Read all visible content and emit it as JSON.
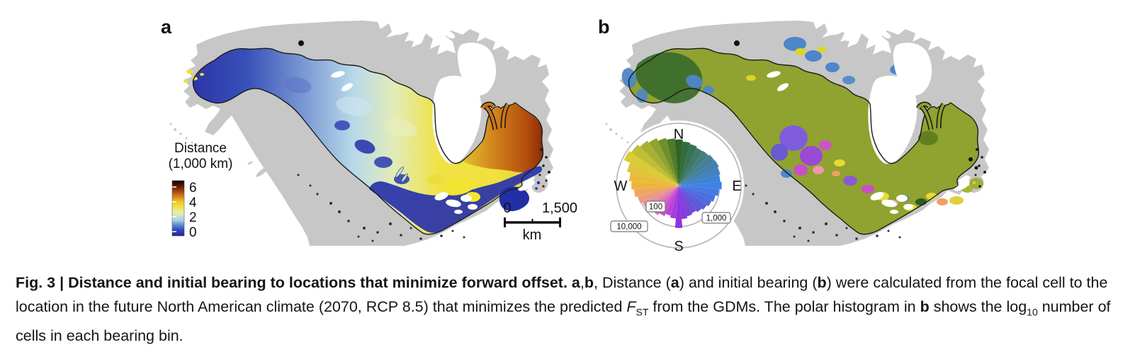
{
  "panels": {
    "a": {
      "label": "a",
      "legend": {
        "title_line1": "Distance",
        "title_line2": "(1,000 km)",
        "ticks": [
          "6",
          "4",
          "2",
          "0"
        ]
      },
      "scale_bar": {
        "start_label": "0",
        "end_label": "1,500",
        "unit_label": "km"
      }
    },
    "b": {
      "label": "b",
      "polar_histogram": {
        "axis_labels": {
          "north": "N",
          "east": "E",
          "south": "S",
          "west": "W"
        },
        "ring_labels": {
          "inner": "100",
          "middle": "1,000",
          "outer": "10,000"
        },
        "radial_scale": "log10 number of cells",
        "bins": [
          {
            "deg": 0,
            "r": 0.74,
            "color": "#2f6626"
          },
          {
            "deg": 10,
            "r": 0.71,
            "color": "#346c3d"
          },
          {
            "deg": 20,
            "r": 0.69,
            "color": "#397253"
          },
          {
            "deg": 30,
            "r": 0.67,
            "color": "#3e786a"
          },
          {
            "deg": 40,
            "r": 0.68,
            "color": "#437e81"
          },
          {
            "deg": 50,
            "r": 0.7,
            "color": "#448196"
          },
          {
            "deg": 60,
            "r": 0.71,
            "color": "#4381ab"
          },
          {
            "deg": 70,
            "r": 0.69,
            "color": "#4182bf"
          },
          {
            "deg": 80,
            "r": 0.67,
            "color": "#4082d4"
          },
          {
            "deg": 90,
            "r": 0.69,
            "color": "#3e82e8"
          },
          {
            "deg": 100,
            "r": 0.65,
            "color": "#4479e4"
          },
          {
            "deg": 110,
            "r": 0.61,
            "color": "#4b70e0"
          },
          {
            "deg": 120,
            "r": 0.58,
            "color": "#5167dc"
          },
          {
            "deg": 130,
            "r": 0.55,
            "color": "#585ed8"
          },
          {
            "deg": 140,
            "r": 0.52,
            "color": "#6156d7"
          },
          {
            "deg": 150,
            "r": 0.49,
            "color": "#6d4dd9"
          },
          {
            "deg": 160,
            "r": 0.51,
            "color": "#7a44dc"
          },
          {
            "deg": 170,
            "r": 0.54,
            "color": "#863bde"
          },
          {
            "deg": 180,
            "r": 0.68,
            "color": "#9232e0"
          },
          {
            "deg": 190,
            "r": 0.53,
            "color": "#a43cdb"
          },
          {
            "deg": 200,
            "r": 0.5,
            "color": "#b745d5"
          },
          {
            "deg": 210,
            "r": 0.54,
            "color": "#c94fd0"
          },
          {
            "deg": 220,
            "r": 0.58,
            "color": "#d364c0"
          },
          {
            "deg": 230,
            "r": 0.61,
            "color": "#de7ab0"
          },
          {
            "deg": 240,
            "r": 0.64,
            "color": "#e88fa0"
          },
          {
            "deg": 250,
            "r": 0.68,
            "color": "#eb9b7f"
          },
          {
            "deg": 260,
            "r": 0.72,
            "color": "#eda85d"
          },
          {
            "deg": 270,
            "r": 0.76,
            "color": "#f0b43c"
          },
          {
            "deg": 280,
            "r": 0.8,
            "color": "#e8bc3b"
          },
          {
            "deg": 290,
            "r": 0.86,
            "color": "#e0c439"
          },
          {
            "deg": 300,
            "r": 0.97,
            "color": "#d8cc38"
          },
          {
            "deg": 310,
            "r": 0.93,
            "color": "#c0be35"
          },
          {
            "deg": 320,
            "r": 0.88,
            "color": "#a7b131"
          },
          {
            "deg": 330,
            "r": 0.84,
            "color": "#8fa32e"
          },
          {
            "deg": 340,
            "r": 0.79,
            "color": "#6f8f2b"
          },
          {
            "deg": 350,
            "r": 0.76,
            "color": "#4f7a29"
          }
        ]
      }
    }
  },
  "caption": {
    "segments": [
      {
        "text": "Fig. 3 | Distance and initial bearing to locations that minimize forward offset. ",
        "bold": true
      },
      {
        "text": "a",
        "bold": true
      },
      {
        "text": ","
      },
      {
        "text": "b",
        "bold": true
      },
      {
        "text": ", Distance ("
      },
      {
        "text": "a",
        "bold": true
      },
      {
        "text": ") and initial bearing ("
      },
      {
        "text": "b",
        "bold": true
      },
      {
        "text": ") were calculated from the focal cell to the location in the future North American climate (2070, RCP 8.5) that minimizes the predicted "
      },
      {
        "text": "F",
        "italic": true
      },
      {
        "text": "ST",
        "sub": true
      },
      {
        "text": " from the GDMs. The polar histogram in "
      },
      {
        "text": "b",
        "bold": true
      },
      {
        "text": " shows the log"
      },
      {
        "text": "10",
        "sub": true
      },
      {
        "text": " number of cells in each bearing bin."
      }
    ]
  },
  "colors": {
    "land_gray": "#c7c7c7",
    "band_outline": "#1a1a1a",
    "distance_scale_bottom_to_top": [
      "#2720a6",
      "#2e46b8",
      "#5f8ccc",
      "#a8cfe4",
      "#e9edb2",
      "#f2e345",
      "#edc22e",
      "#d98a20",
      "#b55612",
      "#7e2a08",
      "#451004",
      "#0d0502"
    ],
    "bearing_wheel": {
      "N": "#2f6626",
      "NE": "#448196",
      "E": "#3e82e8",
      "SE": "#585ed8",
      "S": "#9232e0",
      "SW": "#e88fa0",
      "W": "#f0b43c",
      "NW": "#d8cc38"
    },
    "panel_b_band_fill": "#90a22f"
  }
}
